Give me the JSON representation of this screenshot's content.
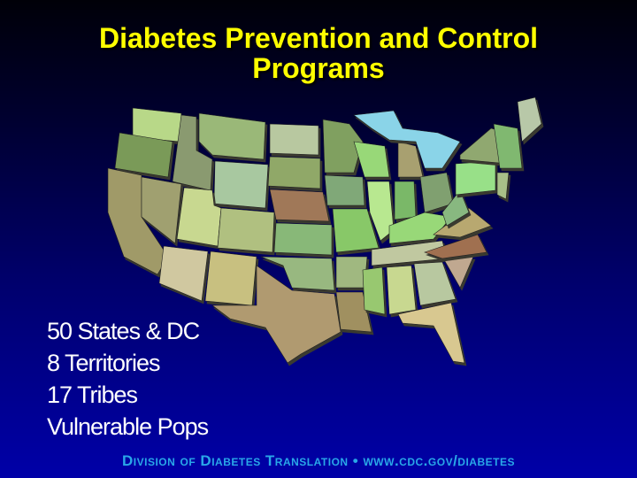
{
  "title_line1": "Diabetes Prevention and Control",
  "title_line2": "Programs",
  "list": [
    "50 States & DC",
    "8 Territories",
    "17 Tribes",
    "Vulnerable Pops"
  ],
  "footer": "Division of Diabetes Translation • www.cdc.gov/diabetes",
  "colors": {
    "title": "#ffff00",
    "footer": "#29a8e8",
    "lakes": "#8ad4e8"
  }
}
